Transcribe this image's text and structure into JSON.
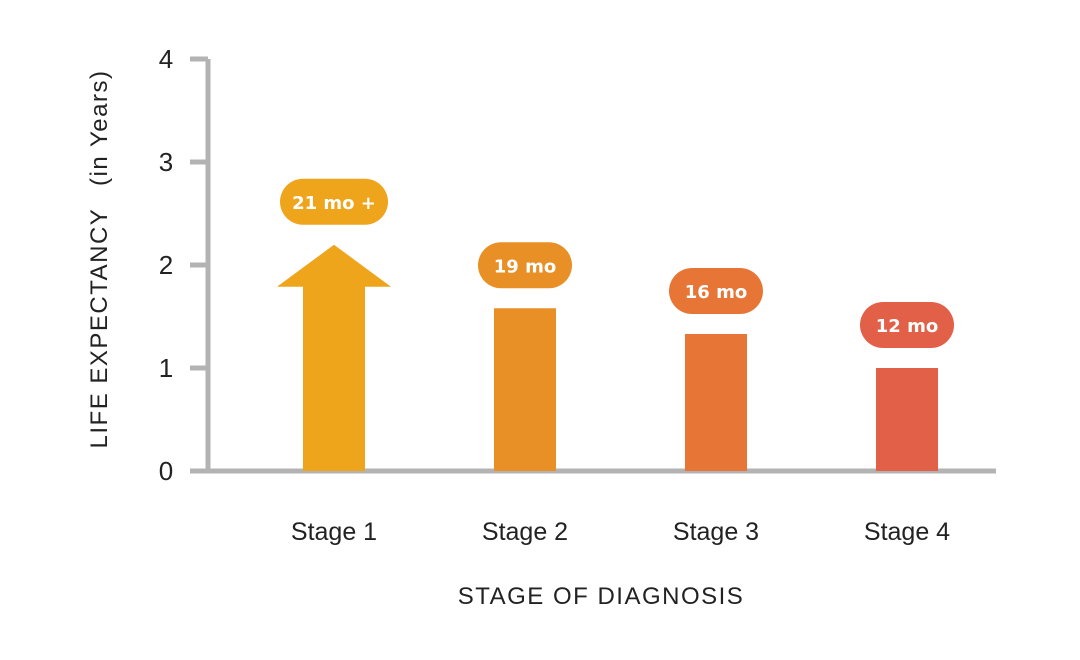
{
  "chart_data": {
    "type": "bar",
    "title": "",
    "xlabel": "STAGE OF DIAGNOSIS",
    "ylabel": "LIFE EXPECTANCY",
    "ylabel_unit": "(in Years)",
    "ylim": [
      0,
      4
    ],
    "yticks": [
      "0",
      "1",
      "2",
      "3",
      "4"
    ],
    "grid": false,
    "categories": [
      "Stage 1",
      "Stage 2",
      "Stage 3",
      "Stage 4"
    ],
    "values": [
      1.75,
      1.58,
      1.33,
      1.0
    ],
    "data_labels": [
      "21 mo +",
      "19 mo",
      "16 mo",
      "12 mo"
    ],
    "marker_styles": [
      "arrow-up",
      "bar",
      "bar",
      "bar"
    ],
    "colors": [
      "#EEA51C",
      "#E88F26",
      "#E77636",
      "#E26048"
    ],
    "axis_color": "#B3B3B3"
  }
}
